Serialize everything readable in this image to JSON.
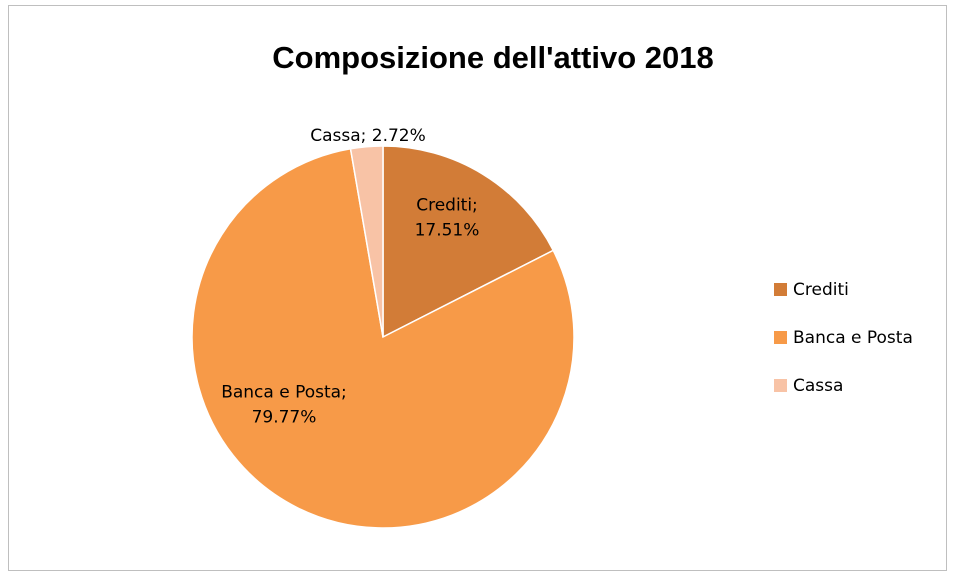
{
  "chart_data": {
    "type": "pie",
    "title": "Composizione dell'attivo 2018",
    "categories": [
      "Crediti",
      "Banca e Posta",
      "Cassa"
    ],
    "values": [
      17.51,
      79.77,
      2.72
    ],
    "value_unit": "%",
    "data_labels": [
      [
        "Crediti;",
        "17.51%"
      ],
      [
        "Banca e Posta;",
        "79.77%"
      ],
      [
        "Cassa; 2.72%"
      ]
    ],
    "colors": [
      "#d27c37",
      "#f79a48",
      "#f8c3a6"
    ],
    "legend": {
      "placement": "right",
      "entries": [
        "Crediti",
        "Banca e Posta",
        "Cassa"
      ]
    },
    "start_angle_deg": 0,
    "direction": "clockwise"
  }
}
